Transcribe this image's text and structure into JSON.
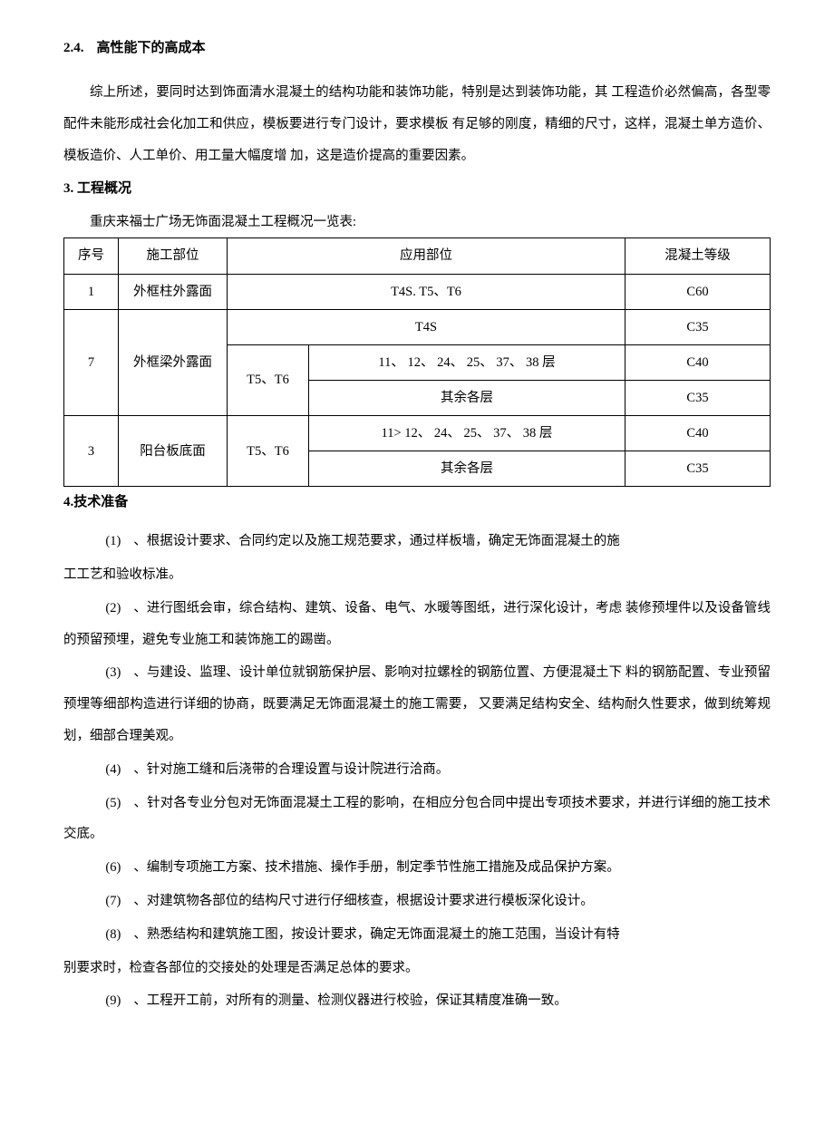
{
  "section24": {
    "number": "2.4.",
    "title": "高性能下的高成本",
    "paragraph": "综上所述，要同时达到饰面清水混凝土的结构功能和装饰功能，特别是达到装饰功能，其 工程造价必然偏高，各型零配件未能形成社会化加工和供应，模板要进行专门设计，要求模板 有足够的刚度，精细的尺寸，这样，混凝土单方造价、模板造价、人工单价、用工量大幅度增 加，这是造价提高的重要因素。"
  },
  "section3": {
    "heading": "3. 工程概况",
    "tableIntro": "重庆来福士广场无饰面混凝土工程概况一览表:",
    "table": {
      "headers": [
        "序号",
        "施工部位",
        "应用部位",
        "混凝土等级"
      ],
      "rows": {
        "r1": {
          "seq": "1",
          "loc": "外框柱外露面",
          "app": "T4S. T5、T6",
          "grade": "C60"
        },
        "r2": {
          "seq": "7",
          "loc": "外框梁外露面",
          "app_a": "T4S",
          "grade_a": "C35",
          "sub_bc": "T5、T6",
          "app_b": "11、 12、 24、 25、 37、 38 层",
          "grade_b": "C40",
          "app_c": "其余各层",
          "grade_c": "C35"
        },
        "r3": {
          "seq": "3",
          "loc": "阳台板底面",
          "sub": "T5、T6",
          "app_a": "11> 12、 24、 25、 37、 38 层",
          "grade_a": "C40",
          "app_b": "其余各层",
          "grade_b": "C35"
        }
      }
    }
  },
  "section4": {
    "heading": "4.技术准备",
    "items": [
      {
        "num": "(1)",
        "text_a": "、根据设计要求、合同约定以及施工规范要求，通过样板墙，确定无饰面混凝土的施",
        "text_b": "工工艺和验收标准。"
      },
      {
        "num": "(2)",
        "text_a": "、进行图纸会审，综合结构、建筑、设备、电气、水暖等图纸，进行深化设计，考虑 装修预埋件以及设备管线的预留预埋，避免专业施工和装饰施工的踢凿。"
      },
      {
        "num": "(3)",
        "text_a": "、与建设、监理、设计单位就钢筋保护层、影响对拉螺栓的钢筋位置、方便混凝土下 料的钢筋配置、专业预留预埋等细部构造进行详细的协商，既要满足无饰面混凝土的施工需要， 又要满足结构安全、结构耐久性要求，做到统筹规划，细部合理美观。"
      },
      {
        "num": "(4)",
        "text_a": "、针对施工缝和后浇带的合理设置与设计院进行洽商。"
      },
      {
        "num": "(5)",
        "text_a": "、针对各专业分包对无饰面混凝土工程的影响，在相应分包合同中提出专项技术要求，并进行详细的施工技术交底。"
      },
      {
        "num": "(6)",
        "text_a": "、编制专项施工方案、技术措施、操作手册，制定季节性施工措施及成品保护方案。"
      },
      {
        "num": "(7)",
        "text_a": "、对建筑物各部位的结构尺寸进行仔细核查，根据设计要求进行模板深化设计。"
      },
      {
        "num": "(8)",
        "text_a": "、熟悉结构和建筑施工图，按设计要求，确定无饰面混凝土的施工范围，当设计有特",
        "text_b": "别要求时，检查各部位的交接处的处理是否满足总体的要求。"
      },
      {
        "num": "(9)",
        "text_a": "、工程开工前，对所有的测量、检测仪器进行校验，保证其精度准确一致。"
      }
    ]
  },
  "style": {
    "background_color": "#ffffff",
    "text_color": "#000000",
    "border_color": "#000000",
    "body_fontsize": 14.5,
    "heading_fontsize": 15,
    "line_height": 2.4
  }
}
